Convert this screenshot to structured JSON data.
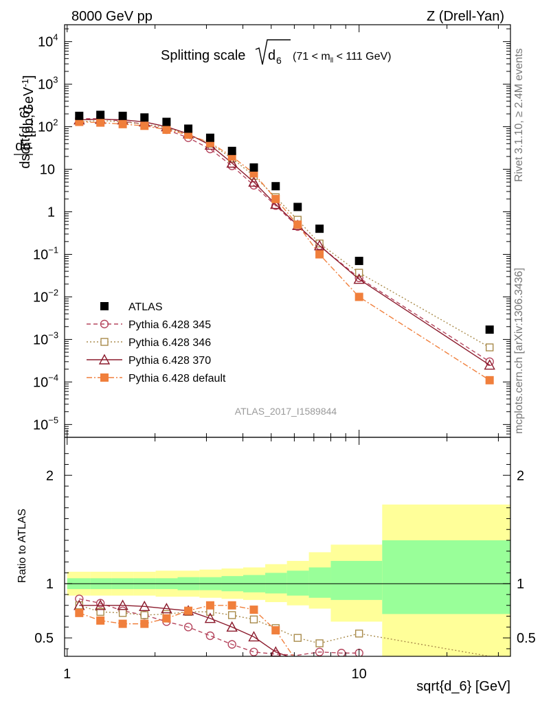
{
  "header": {
    "left": "8000 GeV pp",
    "right": "Z (Drell-Yan)"
  },
  "side": {
    "rivet": "Rivet 3.1.10, ≥ 2.4M events",
    "mcplots": "mcplots.cern.ch [arXiv:1306.3436]"
  },
  "plot_title": {
    "prefix": "Splitting scale",
    "sqrt_arg": "d",
    "sqrt_sub": "6",
    "range_open": "(71 < m",
    "range_sub": "ll",
    "range_close": " < 111 GeV)"
  },
  "analysis_id": "ATLAS_2017_I1589844",
  "chart_data": [
    {
      "type": "scatter",
      "panel": "main",
      "xlabel": "sqrt{d_6} [GeV]",
      "ylabel": "dσ/dsqrt{d_6} [pb,GeV^-1]",
      "yscale": "log",
      "xscale": "log",
      "xlim": [
        0.98,
        33
      ],
      "ylim": [
        5e-06,
        25000
      ],
      "y_ticks": [
        {
          "v": 1e-05,
          "base": "10",
          "exp": "−5"
        },
        {
          "v": 0.0001,
          "base": "10",
          "exp": "−4"
        },
        {
          "v": 0.001,
          "base": "10",
          "exp": "−3"
        },
        {
          "v": 0.01,
          "base": "10",
          "exp": "−2"
        },
        {
          "v": 0.1,
          "base": "10",
          "exp": "−1"
        },
        {
          "v": 1,
          "base": "1",
          "exp": ""
        },
        {
          "v": 10,
          "base": "10",
          "exp": ""
        },
        {
          "v": 100,
          "base": "10",
          "exp": "2"
        },
        {
          "v": 1000,
          "base": "10",
          "exp": "3"
        },
        {
          "v": 10000,
          "base": "10",
          "exp": "4"
        }
      ],
      "legend_position": "lower-left",
      "series": [
        {
          "name": "ATLAS",
          "color": "#000000",
          "marker": "square-filled",
          "line": "none",
          "x": [
            1.1,
            1.3,
            1.55,
            1.84,
            2.19,
            2.6,
            3.09,
            3.67,
            4.36,
            5.18,
            6.16,
            7.32,
            10.0,
            28.0
          ],
          "y": [
            180,
            190,
            180,
            165,
            130,
            90,
            55,
            27,
            11,
            4,
            1.3,
            0.4,
            0.07,
            0.0017
          ]
        },
        {
          "name": "Pythia 6.428 345",
          "color": "#b5455d",
          "marker": "circle-open",
          "line": "dashed",
          "x": [
            1.1,
            1.3,
            1.55,
            1.84,
            2.19,
            2.6,
            3.09,
            3.67,
            4.36,
            5.18,
            6.16,
            7.32,
            10.0,
            28.0
          ],
          "y": [
            155,
            155,
            135,
            115,
            85,
            55,
            30,
            12,
            4.2,
            1.4,
            0.45,
            0.16,
            0.028,
            0.0003
          ]
        },
        {
          "name": "Pythia 6.428 346",
          "color": "#a88a4a",
          "marker": "square-open",
          "line": "dotted",
          "x": [
            1.1,
            1.3,
            1.55,
            1.84,
            2.19,
            2.6,
            3.09,
            3.67,
            4.36,
            5.18,
            6.16,
            7.32,
            10.0,
            28.0
          ],
          "y": [
            130,
            140,
            130,
            115,
            95,
            65,
            40,
            18,
            7,
            2.2,
            0.65,
            0.18,
            0.037,
            0.00065
          ]
        },
        {
          "name": "Pythia 6.428 370",
          "color": "#8b1a2c",
          "marker": "triangle-open",
          "line": "solid",
          "x": [
            1.1,
            1.3,
            1.55,
            1.84,
            2.19,
            2.6,
            3.09,
            3.67,
            4.36,
            5.18,
            6.16,
            7.32,
            10.0,
            28.0
          ],
          "y": [
            145,
            150,
            145,
            130,
            100,
            68,
            37,
            14,
            5,
            1.5,
            0.48,
            0.16,
            0.026,
            0.00025
          ]
        },
        {
          "name": "Pythia 6.428 default",
          "color": "#f07f3c",
          "marker": "square-filled",
          "line": "dashdot",
          "x": [
            1.1,
            1.3,
            1.55,
            1.84,
            2.19,
            2.6,
            3.09,
            3.67,
            4.36,
            5.18,
            6.16,
            7.32,
            10.0,
            28.0
          ],
          "y": [
            130,
            125,
            115,
            105,
            85,
            65,
            42,
            20,
            8,
            2,
            0.5,
            0.1,
            0.01,
            0.00011
          ]
        }
      ]
    },
    {
      "type": "line",
      "panel": "ratio",
      "xlabel": "sqrt{d_6} [GeV]",
      "ylabel": "Ratio to ATLAS",
      "xscale": "log",
      "xlim": [
        0.98,
        33
      ],
      "ylim": [
        0.33,
        2.35
      ],
      "y_ticks": [
        {
          "v": 0.5,
          "label": "0.5"
        },
        {
          "v": 1,
          "label": "1"
        },
        {
          "v": 2,
          "label": "2"
        }
      ],
      "x_ticks": [
        {
          "v": 1,
          "label": "1"
        },
        {
          "v": 10,
          "label": "10"
        }
      ],
      "bands": {
        "edges": [
          1.0,
          1.2,
          1.42,
          1.69,
          2.01,
          2.39,
          2.84,
          3.38,
          4.01,
          4.77,
          5.66,
          6.73,
          8.0,
          12.0,
          33
        ],
        "yellow_lo": [
          0.89,
          0.89,
          0.89,
          0.89,
          0.88,
          0.88,
          0.87,
          0.86,
          0.85,
          0.83,
          0.8,
          0.77,
          0.65,
          0.33
        ],
        "yellow_hi": [
          1.11,
          1.11,
          1.11,
          1.11,
          1.12,
          1.12,
          1.13,
          1.14,
          1.15,
          1.18,
          1.21,
          1.29,
          1.36,
          1.73
        ],
        "green_lo": [
          0.95,
          0.95,
          0.95,
          0.95,
          0.95,
          0.94,
          0.94,
          0.93,
          0.92,
          0.91,
          0.89,
          0.87,
          0.85,
          0.72
        ],
        "green_hi": [
          1.05,
          1.05,
          1.05,
          1.05,
          1.05,
          1.06,
          1.06,
          1.07,
          1.08,
          1.1,
          1.12,
          1.15,
          1.21,
          1.4
        ]
      },
      "series": [
        {
          "name": "Pythia 6.428 345",
          "color": "#b5455d",
          "marker": "circle-open",
          "line": "dashed",
          "x": [
            1.1,
            1.3,
            1.55,
            1.84,
            2.19,
            2.6,
            3.09,
            3.67,
            4.36,
            5.18,
            6.16,
            7.32,
            8.7,
            10.0
          ],
          "y": [
            0.86,
            0.82,
            0.75,
            0.71,
            0.65,
            0.6,
            0.52,
            0.44,
            0.37,
            0.35,
            0.34,
            0.37,
            0.36,
            0.36
          ]
        },
        {
          "name": "Pythia 6.428 346",
          "color": "#a88a4a",
          "marker": "square-open",
          "line": "dotted",
          "x": [
            1.1,
            1.3,
            1.55,
            1.84,
            2.19,
            2.6,
            3.09,
            3.67,
            4.36,
            5.18,
            6.16,
            7.32,
            10.0,
            28.0
          ],
          "y": [
            0.8,
            0.74,
            0.73,
            0.71,
            0.72,
            0.74,
            0.74,
            0.71,
            0.67,
            0.59,
            0.5,
            0.45,
            0.54,
            0.33
          ]
        },
        {
          "name": "Pythia 6.428 370",
          "color": "#8b1a2c",
          "marker": "triangle-open",
          "line": "solid",
          "x": [
            1.1,
            1.3,
            1.55,
            1.84,
            2.19,
            2.6,
            3.09,
            3.67,
            4.36,
            5.18,
            5.7
          ],
          "y": [
            0.8,
            0.8,
            0.8,
            0.79,
            0.77,
            0.75,
            0.68,
            0.6,
            0.51,
            0.37,
            0.33
          ]
        },
        {
          "name": "Pythia 6.428 default",
          "color": "#f07f3c",
          "marker": "square-filled",
          "line": "dashdot",
          "x": [
            1.1,
            1.3,
            1.55,
            1.84,
            2.19,
            2.6,
            3.09,
            3.67,
            4.36,
            5.18,
            5.95
          ],
          "y": [
            0.73,
            0.66,
            0.63,
            0.63,
            0.68,
            0.75,
            0.8,
            0.8,
            0.76,
            0.57,
            0.33
          ]
        }
      ]
    }
  ]
}
